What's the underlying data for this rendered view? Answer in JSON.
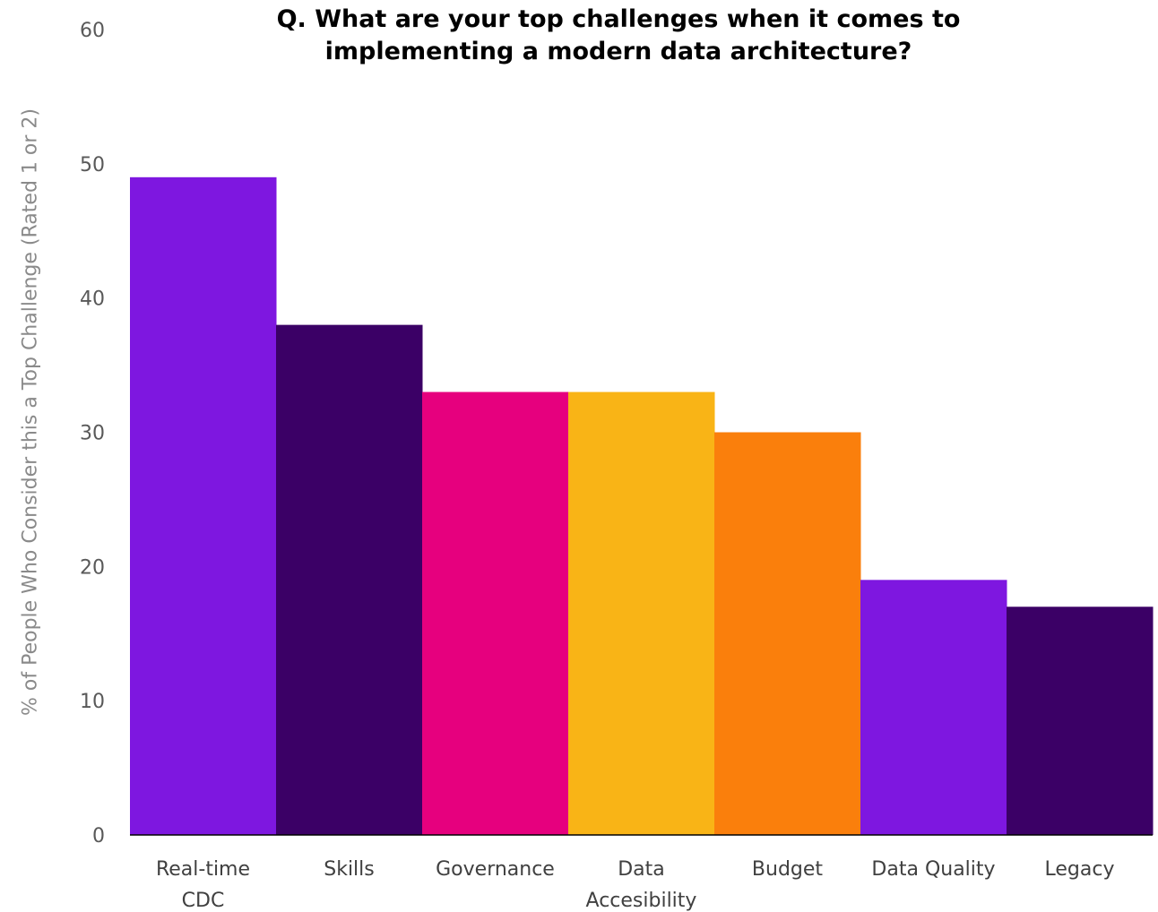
{
  "chart_data": {
    "type": "bar",
    "title": "Q. What are your top challenges when it comes to\nimplementing a modern data architecture?",
    "xlabel": "",
    "ylabel": "% of People Who Consider this a Top Challenge (Rated 1 or 2)",
    "ylim": [
      0,
      60
    ],
    "yticks": [
      0,
      10,
      20,
      30,
      40,
      50,
      60
    ],
    "grid": false,
    "legend": "none",
    "categories": [
      [
        "Real-time",
        "CDC"
      ],
      [
        "Skills"
      ],
      [
        "Governance"
      ],
      [
        "Data",
        "Accesibility"
      ],
      [
        "Budget"
      ],
      [
        "Data Quality"
      ],
      [
        "Legacy"
      ]
    ],
    "values": [
      49,
      38,
      33,
      33,
      30,
      19,
      17
    ],
    "colors": [
      "#7e17e0",
      "#3b0066",
      "#e6007e",
      "#f9b416",
      "#fa7f0c",
      "#7e17e0",
      "#3b0066"
    ]
  }
}
